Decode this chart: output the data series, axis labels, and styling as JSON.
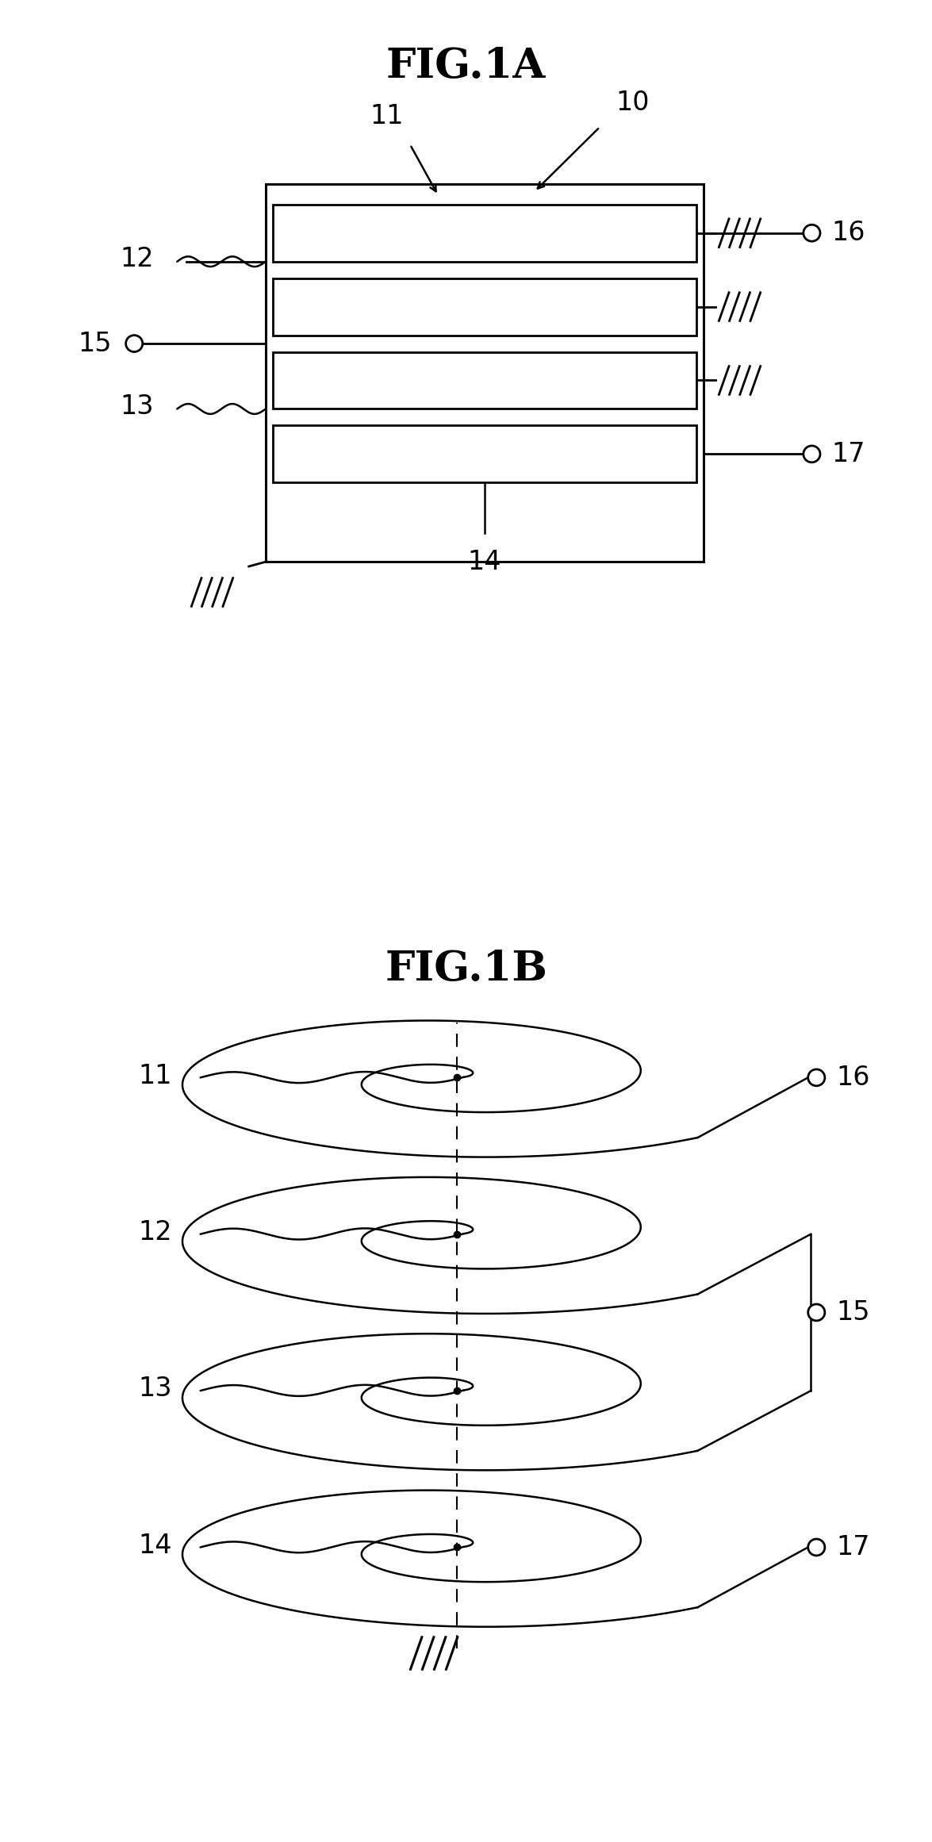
{
  "fig_title_A": "FIG.1A",
  "fig_title_B": "FIG.1B",
  "bg_color": "#ffffff",
  "line_color": "#000000",
  "title_fontsize": 38,
  "label_fontsize": 24,
  "fig_width": 11.75,
  "fig_height": 23.22
}
